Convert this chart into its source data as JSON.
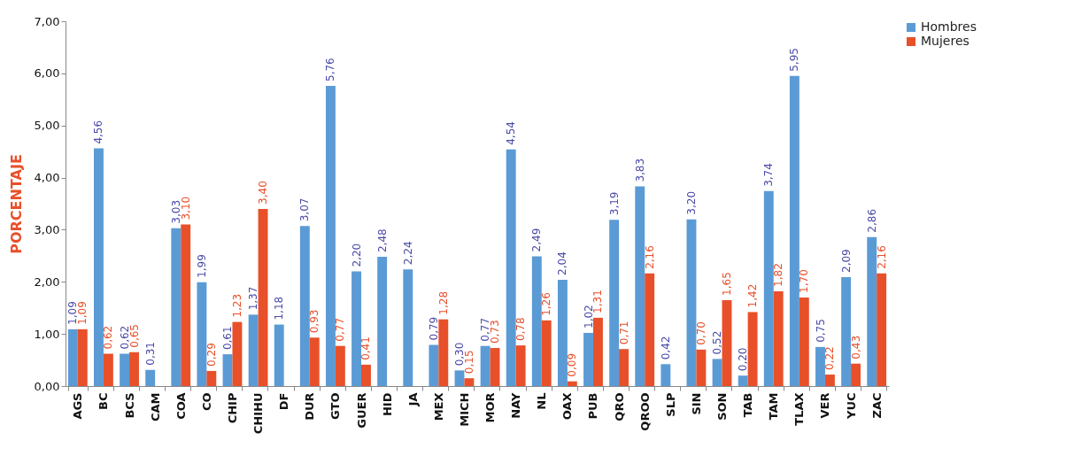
{
  "chart_data": {
    "type": "bar",
    "ylabel": "PORCENTAJE",
    "categories": [
      "AGS",
      "BC",
      "BCS",
      "CAM",
      "COA",
      "CO",
      "CHIP",
      "CHIHU",
      "DF",
      "DUR",
      "GTO",
      "GUER",
      "HID",
      "JA",
      "MEX",
      "MICH",
      "MOR",
      "NAY",
      "NL",
      "OAX",
      "PUB",
      "QRO",
      "QROO",
      "SLP",
      "SIN",
      "SON",
      "TAB",
      "TAM",
      "TLAX",
      "VER",
      "YUC",
      "ZAC"
    ],
    "series": [
      {
        "name": "Hombres",
        "color": "#5b9bd5",
        "values": [
          1.09,
          4.56,
          0.62,
          0.31,
          3.03,
          1.99,
          0.61,
          1.37,
          1.18,
          3.07,
          5.76,
          2.2,
          2.48,
          2.24,
          0.79,
          0.3,
          0.77,
          4.54,
          2.49,
          2.04,
          1.02,
          3.19,
          3.83,
          0.42,
          3.2,
          0.52,
          0.2,
          3.74,
          5.95,
          0.75,
          2.09,
          2.86
        ],
        "value_labels": [
          "1,09",
          "4,56",
          "0,62",
          "0,31",
          "3,03",
          "1,99",
          "0,61",
          "1,37",
          "1,18",
          "3,07",
          "5,76",
          "2,20",
          "2,48",
          "2,24",
          "0,79",
          "0,30",
          "0,77",
          "4,54",
          "2,49",
          "2,04",
          "1,02",
          "3,19",
          "3,83",
          "0,42",
          "3,20",
          "0,52",
          "0,20",
          "3,74",
          "5,95",
          "0,75",
          "2,09",
          "2,86"
        ]
      },
      {
        "name": "Mujeres",
        "color": "#e8502a",
        "values": [
          1.09,
          0.62,
          0.65,
          null,
          3.1,
          0.29,
          1.23,
          3.4,
          null,
          0.93,
          0.77,
          0.41,
          null,
          null,
          1.28,
          0.15,
          0.73,
          0.78,
          1.26,
          0.09,
          1.31,
          0.71,
          2.16,
          null,
          0.7,
          1.65,
          1.42,
          1.82,
          1.7,
          0.22,
          0.43,
          2.16
        ],
        "value_labels": [
          "1,09",
          "0,62",
          "0,65",
          null,
          "3,10",
          "0,29",
          "1,23",
          "3,40",
          null,
          "0,93",
          "0,77",
          "0,41",
          null,
          null,
          "1,28",
          "0,15",
          "0,73",
          "0,78",
          "1,26",
          "0,09",
          "1,31",
          "0,71",
          "2,16",
          null,
          "0,70",
          "1,65",
          "1,42",
          "1,82",
          "1,70",
          "0,22",
          "0,43",
          "2,16"
        ]
      }
    ],
    "ylim": [
      0,
      7
    ],
    "yticks": [
      {
        "value": 0,
        "label": "0,00"
      },
      {
        "value": 1,
        "label": "1,00"
      },
      {
        "value": 2,
        "label": "2,00"
      },
      {
        "value": 3,
        "label": "3,00"
      },
      {
        "value": 4,
        "label": "4,00"
      },
      {
        "value": 5,
        "label": "5,00"
      },
      {
        "value": 6,
        "label": "6,00"
      },
      {
        "value": 7,
        "label": "7,00"
      }
    ],
    "legend": "right"
  }
}
